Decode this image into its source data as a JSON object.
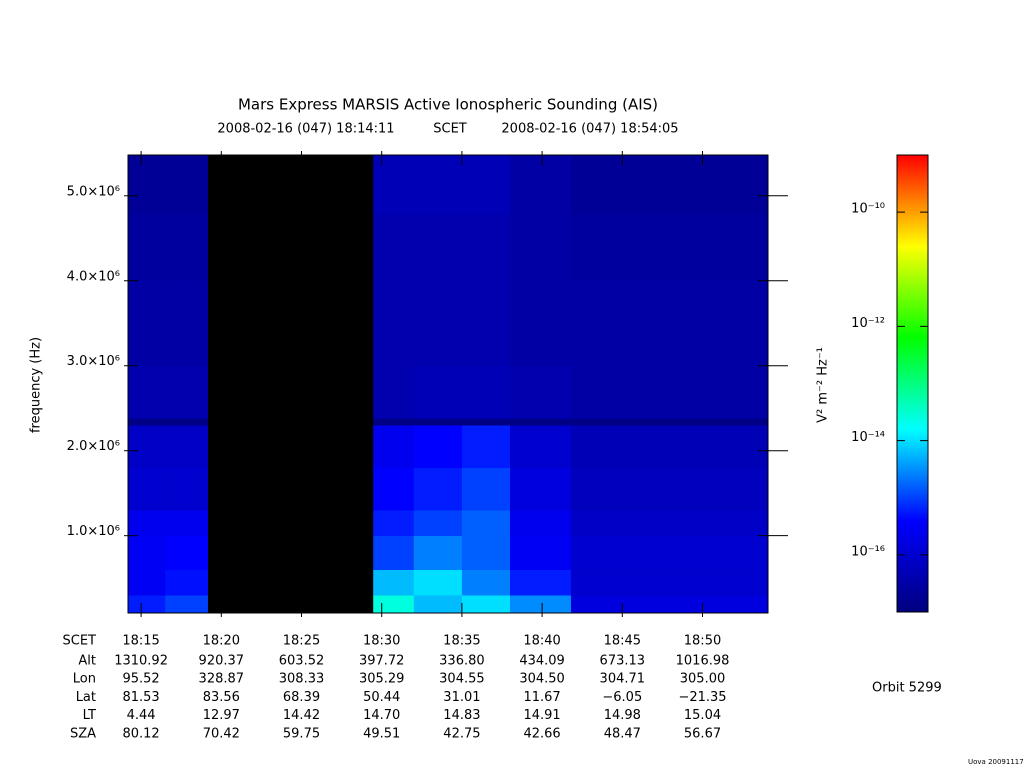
{
  "chart_data": {
    "type": "heatmap",
    "title": "Mars Express MARSIS Active Ionospheric Sounding (AIS)",
    "subtitle_start": "2008-02-16 (047) 18:14:11",
    "subtitle_mid": "SCET",
    "subtitle_end": "2008-02-16 (047) 18:54:05",
    "y_label": "frequency (Hz)",
    "colorbar_label": "V² m⁻² Hz⁻¹",
    "annotation": "Orbit 5299",
    "footer": "Uova 20091117",
    "xlim": [
      1094.183,
      1134.083
    ],
    "xticks": [
      {
        "value": 1095,
        "label": "18:15"
      },
      {
        "value": 1100,
        "label": "18:20"
      },
      {
        "value": 1105,
        "label": "18:25"
      },
      {
        "value": 1110,
        "label": "18:30"
      },
      {
        "value": 1115,
        "label": "18:35"
      },
      {
        "value": 1120,
        "label": "18:40"
      },
      {
        "value": 1125,
        "label": "18:45"
      },
      {
        "value": 1130,
        "label": "18:50"
      }
    ],
    "ylim": [
      90000,
      5480000
    ],
    "yticks": [
      {
        "value": 1000000,
        "label": "1.0×10⁶"
      },
      {
        "value": 2000000,
        "label": "2.0×10⁶"
      },
      {
        "value": 3000000,
        "label": "3.0×10⁶"
      },
      {
        "value": 4000000,
        "label": "4.0×10⁶"
      },
      {
        "value": 5000000,
        "label": "5.0×10⁶"
      }
    ],
    "zlim": [
      1e-17,
      1e-09
    ],
    "zlog": true,
    "zticks": [
      {
        "value": 1e-10,
        "label": "10⁻¹⁰"
      },
      {
        "value": 1e-12,
        "label": "10⁻¹²"
      },
      {
        "value": 1e-14,
        "label": "10⁻¹⁴"
      },
      {
        "value": 1e-16,
        "label": "10⁻¹⁶"
      }
    ],
    "colorscale": [
      "#00007f",
      "#0000ff",
      "#00ffff",
      "#00ff00",
      "#ffff00",
      "#ff0000"
    ],
    "missing_color": "#000000",
    "x_bins": [
      1094.183,
      1096.5,
      1099.15,
      1109.47,
      1112,
      1115,
      1118,
      1121.8,
      1126,
      1130,
      1134.083
    ],
    "y_bins": [
      90000,
      300000,
      600000,
      1000000,
      1300000,
      1800000,
      2300000,
      2380000,
      3000000,
      4000000,
      4800000,
      5480000
    ],
    "z": [
      [
        6e-16,
        1e-15,
        null,
        2.5e-14,
        6e-15,
        1e-14,
        3e-15,
        1.6e-16,
        1.6e-16,
        1.6e-16
      ],
      [
        3e-16,
        5e-16,
        null,
        6e-15,
        1e-14,
        2.5e-15,
        6e-16,
        1e-16,
        1e-16,
        1e-16
      ],
      [
        3e-16,
        4e-16,
        null,
        1e-15,
        2.5e-15,
        1.6e-15,
        3e-16,
        1e-16,
        1e-16,
        1e-16
      ],
      [
        2.5e-16,
        2.5e-16,
        null,
        6e-16,
        1e-15,
        1.6e-15,
        2.5e-16,
        8e-17,
        8e-17,
        8e-17
      ],
      [
        1e-16,
        1e-16,
        null,
        4e-16,
        6e-16,
        1e-15,
        1.6e-16,
        6e-17,
        6e-17,
        6e-17
      ],
      [
        8e-17,
        8e-17,
        null,
        2.5e-16,
        4e-16,
        6e-16,
        1e-16,
        5e-17,
        5e-17,
        5e-17
      ],
      [
        1.2e-17,
        1.2e-17,
        null,
        1.2e-17,
        1.2e-17,
        1.2e-17,
        1.2e-17,
        1.2e-17,
        1.2e-17,
        1.2e-17
      ],
      [
        4e-17,
        4e-17,
        null,
        4e-17,
        5e-17,
        5e-17,
        4e-17,
        3e-17,
        3e-17,
        3e-17
      ],
      [
        3e-17,
        3e-17,
        null,
        4e-17,
        4e-17,
        4e-17,
        3e-17,
        3e-17,
        3e-17,
        3e-17
      ],
      [
        2.5e-17,
        2.5e-17,
        null,
        4e-17,
        4e-17,
        4e-17,
        3e-17,
        2.5e-17,
        2.5e-17,
        2.5e-17
      ],
      [
        2e-17,
        2e-17,
        null,
        5e-17,
        5e-17,
        5e-17,
        3e-17,
        2e-17,
        2e-17,
        2e-17
      ]
    ],
    "row_header": "SCET",
    "ephemeris": [
      {
        "name": "Alt",
        "values": [
          "1310.92",
          "920.37",
          "603.52",
          "397.72",
          "336.80",
          "434.09",
          "673.13",
          "1016.98"
        ]
      },
      {
        "name": "Lon",
        "values": [
          "95.52",
          "328.87",
          "308.33",
          "305.29",
          "304.55",
          "304.50",
          "304.71",
          "305.00"
        ]
      },
      {
        "name": "Lat",
        "values": [
          "81.53",
          "83.56",
          "68.39",
          "50.44",
          "31.01",
          "11.67",
          "−6.05",
          "−21.35"
        ]
      },
      {
        "name": "LT",
        "values": [
          "4.44",
          "12.97",
          "14.42",
          "14.70",
          "14.83",
          "14.91",
          "14.98",
          "15.04"
        ]
      },
      {
        "name": "SZA",
        "values": [
          "80.12",
          "70.42",
          "59.75",
          "49.51",
          "42.75",
          "42.66",
          "48.47",
          "56.67"
        ]
      }
    ]
  }
}
